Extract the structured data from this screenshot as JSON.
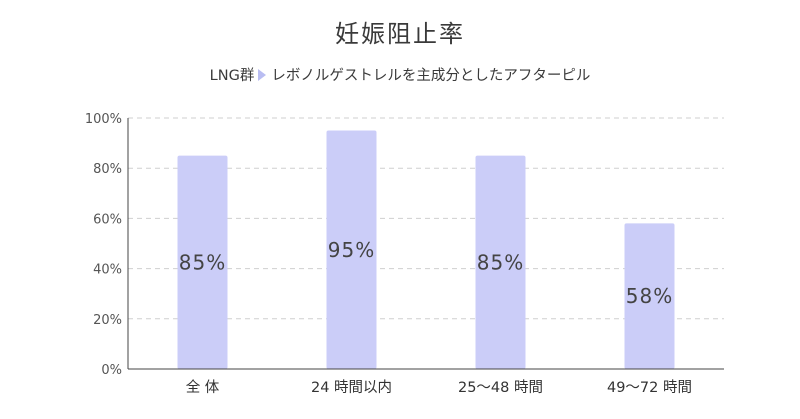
{
  "chart_data": {
    "type": "bar",
    "title": "妊娠阻止率",
    "subtitle": {
      "group": "LNG群",
      "description": "レボノルゲストレルを主成分としたアフターピル"
    },
    "categories": [
      "全 体",
      "24 時間以内",
      "25〜48 時間",
      "49〜72 時間"
    ],
    "values": [
      85,
      95,
      85,
      58
    ],
    "data_labels": [
      "85%",
      "95%",
      "85%",
      "58%"
    ],
    "y_ticks": [
      "0%",
      "20%",
      "40%",
      "60%",
      "80%",
      "100%"
    ],
    "ylim": [
      0,
      100
    ],
    "xlabel": "",
    "ylabel": "",
    "grid": true,
    "bar_color": "#cbcdf8",
    "arrow_color": "#b9bdf2"
  }
}
